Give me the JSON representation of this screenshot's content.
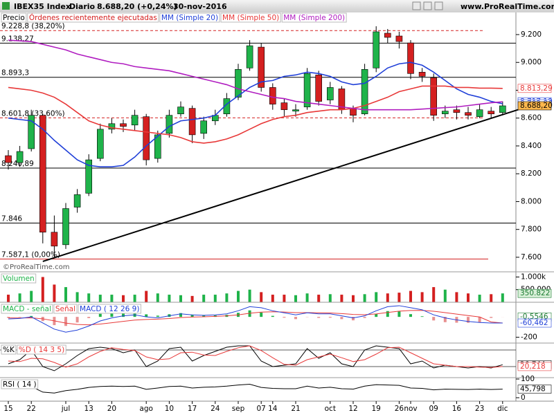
{
  "header": {
    "symbol": "IBEX35 Index",
    "period": "Diario",
    "last": "8.688,20 (+0,24%)",
    "date": "30-nov-2016",
    "site": "www.ProRealTime.com",
    "watermark": "©ProRealTime.com"
  },
  "chart_data": [
    {
      "type": "candlestick",
      "categories": [
        "15",
        null,
        "22",
        null,
        null,
        "jul",
        null,
        "13",
        null,
        "20",
        null,
        null,
        "ago",
        null,
        "10",
        null,
        "17",
        null,
        "24",
        null,
        "sep",
        null,
        "07",
        "14",
        null,
        "21",
        null,
        null,
        "oct",
        null,
        "12",
        null,
        "19",
        null,
        "26",
        "nov",
        null,
        "09",
        null,
        "16",
        null,
        "23",
        null,
        "dic"
      ],
      "candles": {
        "name": "Precio",
        "up_color": "#1fb34a",
        "down_color": "#d42020",
        "open": [
          8330,
          8280,
          8380,
          8620,
          7780,
          7690,
          7960,
          8060,
          8310,
          8520,
          8560,
          8550,
          8610,
          8310,
          8490,
          8630,
          8670,
          8490,
          8580,
          8630,
          8750,
          8960,
          9110,
          8820,
          8710,
          8650,
          8680,
          8910,
          8730,
          8810,
          8670,
          8630,
          8960,
          9210,
          9190,
          9140,
          8930,
          8890,
          8630,
          8660,
          8640,
          8610,
          8650,
          8640
        ],
        "high": [
          8370,
          8400,
          8660,
          8630,
          7900,
          7990,
          8090,
          8340,
          8560,
          8600,
          8590,
          8660,
          8630,
          8510,
          8660,
          8720,
          8690,
          8610,
          8660,
          8780,
          8990,
          9160,
          9140,
          8850,
          8740,
          8700,
          8960,
          8940,
          8860,
          8830,
          8690,
          8990,
          9260,
          9240,
          9220,
          9160,
          8960,
          8920,
          8690,
          8690,
          8680,
          8700,
          8680,
          8720
        ],
        "low": [
          8230,
          8250,
          8360,
          7700,
          7600,
          7660,
          7920,
          8040,
          8290,
          8490,
          8500,
          8510,
          8260,
          8280,
          8460,
          8610,
          8420,
          8450,
          8550,
          8610,
          8730,
          8940,
          8790,
          8660,
          8610,
          8610,
          8660,
          8690,
          8700,
          8630,
          8570,
          8620,
          8930,
          9140,
          9100,
          8880,
          8860,
          8580,
          8600,
          8590,
          8590,
          8600,
          8600,
          8620
        ],
        "close": [
          8280,
          8360,
          8620,
          7780,
          7680,
          7950,
          8050,
          8300,
          8520,
          8560,
          8540,
          8620,
          8300,
          8480,
          8620,
          8680,
          8480,
          8580,
          8620,
          8740,
          8950,
          9120,
          8820,
          8700,
          8660,
          8660,
          8920,
          8720,
          8820,
          8660,
          8620,
          8950,
          9220,
          9180,
          9150,
          8920,
          8900,
          8620,
          8650,
          8640,
          8620,
          8660,
          8630,
          8688.2
        ]
      },
      "orders_label": "Órdenes recientemente ejecutadas",
      "orders_color": "#d42020",
      "series": [
        {
          "name": "MM (Simple 20)",
          "color": "#1f3fd8",
          "values": [
            8600,
            8590,
            8580,
            8520,
            8440,
            8370,
            8300,
            8260,
            8250,
            8250,
            8260,
            8320,
            8400,
            8470,
            8540,
            8580,
            8590,
            8600,
            8620,
            8700,
            8760,
            8820,
            8860,
            8870,
            8900,
            8910,
            8930,
            8920,
            8900,
            8860,
            8840,
            8850,
            8900,
            8960,
            8990,
            9000,
            8980,
            8930,
            8870,
            8810,
            8770,
            8750,
            8720,
            8702.86
          ]
        },
        {
          "name": "MM (Simple 50)",
          "color": "#e83838",
          "values": [
            8820,
            8810,
            8800,
            8780,
            8750,
            8700,
            8640,
            8580,
            8550,
            8530,
            8520,
            8510,
            8500,
            8490,
            8480,
            8460,
            8430,
            8420,
            8430,
            8450,
            8480,
            8520,
            8560,
            8590,
            8610,
            8620,
            8640,
            8650,
            8660,
            8660,
            8670,
            8690,
            8720,
            8750,
            8790,
            8810,
            8830,
            8830,
            8830,
            8820,
            8820,
            8815,
            8815,
            8813.29
          ]
        },
        {
          "name": "MM (Simple 200)",
          "color": "#b01cc0",
          "values": [
            9160,
            9155,
            9150,
            9130,
            9110,
            9090,
            9060,
            9040,
            9020,
            9000,
            8990,
            8970,
            8960,
            8950,
            8940,
            8920,
            8900,
            8880,
            8860,
            8840,
            8810,
            8790,
            8770,
            8750,
            8740,
            8720,
            8710,
            8700,
            8690,
            8680,
            8670,
            8660,
            8660,
            8660,
            8660,
            8660,
            8665,
            8670,
            8675,
            8680,
            8690,
            8700,
            8710,
            8717.19
          ]
        }
      ],
      "ylim": [
        7550,
        9359
      ],
      "yticks": [
        {
          "value": 7600,
          "label": "7.600"
        },
        {
          "value": 7800,
          "label": "7.800"
        },
        {
          "value": 8000,
          "label": "8.000"
        },
        {
          "value": 8200,
          "label": "8.200"
        },
        {
          "value": 8400,
          "label": "8.400"
        },
        {
          "value": 8600,
          "label": "8.600"
        },
        {
          "value": 8800,
          "label": "8.800"
        },
        {
          "value": 9000,
          "label": "9.000"
        },
        {
          "value": 9200,
          "label": "9.200"
        }
      ],
      "levels": [
        {
          "value": 9228.8,
          "label": "9.228,8 (38,20%)",
          "color": "#d42020",
          "dashed": true
        },
        {
          "value": 9138.27,
          "label": "9.138,27",
          "color": "#000000",
          "dashed": false
        },
        {
          "value": 8893.3,
          "label": "8.893,3",
          "color": "#000000",
          "dashed": false
        },
        {
          "value": 8601.8,
          "label": "8.601,8 (33,60%)",
          "color": "#d42020",
          "dashed": true
        },
        {
          "value": 8240.89,
          "label": "8.240,89",
          "color": "#000000",
          "dashed": false
        },
        {
          "value": 7846,
          "label": "7.846",
          "color": "#000000",
          "dashed": false
        },
        {
          "value": 7587.1,
          "label": "7.587,1 (0,00%)",
          "color": "#d42020",
          "dashed": false
        }
      ],
      "trendline": {
        "x": [
          3,
          43
        ],
        "values": [
          7570,
          8625
        ],
        "color": "#000000"
      },
      "tags": [
        {
          "value": 8813.29,
          "label": "8.813,29",
          "color": "#ffffff",
          "text_color": "#e83838"
        },
        {
          "value": 8717.19,
          "label": "8.717,19",
          "color": "#ffffff",
          "text_color": "#1f3fd8"
        },
        {
          "value": 8702.86,
          "label": "8.702,86",
          "color": "#ffffff",
          "text_color": "#1f3fd8"
        },
        {
          "value": 8688.2,
          "label": "8.688,20",
          "color": "#ffb84d",
          "text_color": "#000000"
        }
      ]
    },
    {
      "type": "bar",
      "series": [
        {
          "name": "Volumen",
          "color": "#1fb34a",
          "values": [
            300000,
            350000,
            450000,
            1000000,
            700000,
            600000,
            400000,
            350000,
            300000,
            300000,
            280000,
            300000,
            450000,
            350000,
            300000,
            280000,
            250000,
            300000,
            300000,
            350000,
            450000,
            500000,
            400000,
            300000,
            300000,
            280000,
            350000,
            300000,
            320000,
            300000,
            280000,
            320000,
            400000,
            350000,
            380000,
            450000,
            400000,
            600000,
            500000,
            400000,
            350000,
            300000,
            320000,
            350822
          ]
        }
      ],
      "ylim": [
        0,
        1150000
      ],
      "yticks": [
        {
          "value": 1000000,
          "label": "1.000k"
        },
        {
          "value": 500000,
          "label": "500.000"
        }
      ],
      "tags": [
        {
          "value": 350822,
          "label": "350.822",
          "color": "#d8f0d8",
          "text_color": "#1a7a30"
        }
      ]
    },
    {
      "type": "macd",
      "series": [
        {
          "name": "MACD - señal",
          "color": "#1fb34a",
          "values": [
            -10,
            -4,
            9,
            -41,
            -81,
            -89,
            -55,
            -12,
            30,
            48,
            54,
            51,
            25,
            12,
            26,
            37,
            22,
            14,
            15,
            20,
            40,
            64,
            43,
            10,
            -8,
            -22,
            -2,
            -10,
            -8,
            -22,
            -34,
            -11,
            31,
            57,
            54,
            27,
            6,
            -35,
            -52,
            -57,
            -58,
            -54,
            -10,
            -0.5546
          ]
        },
        {
          "name": "Señal",
          "color": "#e83838",
          "values": [
            -10,
            -11,
            -9,
            -19,
            -39,
            -61,
            -75,
            -78,
            -70,
            -58,
            -44,
            -31,
            -25,
            -22,
            -16,
            -7,
            -2,
            1,
            5,
            10,
            20,
            36,
            47,
            50,
            48,
            42,
            42,
            40,
            38,
            32,
            24,
            21,
            29,
            43,
            56,
            63,
            64,
            55,
            42,
            27,
            13,
            -1,
            -50,
            -59.9074
          ]
        },
        {
          "name": "MACD ( 12 26 9)",
          "color": "#1f3fd8",
          "values": [
            -20,
            -15,
            0,
            -60,
            -120,
            -150,
            -130,
            -90,
            -40,
            -10,
            10,
            20,
            0,
            -10,
            10,
            30,
            20,
            15,
            20,
            30,
            60,
            100,
            90,
            60,
            40,
            20,
            40,
            30,
            30,
            10,
            -10,
            10,
            60,
            100,
            110,
            90,
            70,
            20,
            -10,
            -30,
            -45,
            -55,
            -60,
            -60.462
          ]
        }
      ],
      "ylim": [
        -230,
        130
      ],
      "yticks": [
        -200
      ],
      "tags": [
        {
          "value": -0.5546,
          "label": "-0,5546",
          "color": "#ffffff",
          "text_color": "#1a7a30"
        },
        {
          "value": -60.462,
          "label": "-60,462",
          "color": "#ffffff",
          "text_color": "#1f3fd8"
        }
      ]
    },
    {
      "type": "line",
      "series": [
        {
          "name": "%K",
          "color": "#000000",
          "values": [
            30,
            45,
            80,
            20,
            5,
            30,
            60,
            85,
            90,
            85,
            70,
            80,
            20,
            40,
            85,
            90,
            40,
            60,
            75,
            90,
            95,
            95,
            40,
            20,
            25,
            30,
            85,
            50,
            70,
            30,
            20,
            80,
            95,
            90,
            85,
            30,
            40,
            15,
            25,
            20,
            15,
            20,
            15,
            26.744
          ]
        },
        {
          "name": "%D ( 14 3 5)",
          "color": "#e83838",
          "values": [
            40,
            38,
            50,
            48,
            35,
            18,
            30,
            55,
            75,
            88,
            82,
            78,
            55,
            45,
            48,
            70,
            72,
            62,
            60,
            75,
            88,
            95,
            78,
            52,
            28,
            25,
            45,
            55,
            65,
            52,
            38,
            45,
            65,
            88,
            90,
            70,
            50,
            30,
            25,
            20,
            20,
            18,
            17,
            20.218
          ]
        }
      ],
      "ylim": [
        0,
        100
      ],
      "levels": [
        20,
        80
      ],
      "tags": [
        {
          "value": 26.744,
          "label": "26,744",
          "color": "#ffffff",
          "text_color": "#000000"
        },
        {
          "value": 20.218,
          "label": "20,218",
          "color": "#ffffff",
          "text_color": "#e83838"
        }
      ]
    },
    {
      "type": "line",
      "series": [
        {
          "name": "RSI ( 14 )",
          "color": "#000000",
          "values": [
            48,
            52,
            60,
            30,
            25,
            38,
            45,
            55,
            60,
            62,
            60,
            62,
            45,
            52,
            60,
            62,
            52,
            56,
            58,
            62,
            68,
            72,
            55,
            50,
            48,
            48,
            62,
            52,
            56,
            48,
            46,
            62,
            70,
            68,
            66,
            52,
            50,
            42,
            46,
            45,
            44,
            46,
            44,
            45.798
          ]
        }
      ],
      "ylim": [
        0,
        100
      ],
      "yticks": [
        100,
        0
      ],
      "tags": [
        {
          "value": 45.798,
          "label": "45,798",
          "color": "#ffffff",
          "text_color": "#000000"
        }
      ]
    }
  ]
}
